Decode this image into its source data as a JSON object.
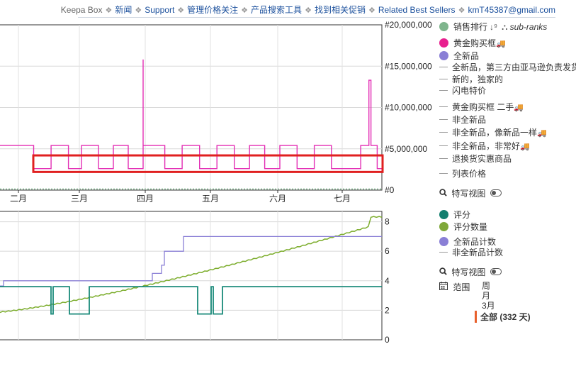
{
  "nav": {
    "items": [
      {
        "label": "Keepa Box",
        "style": "plain"
      },
      {
        "label": "新闻",
        "style": "link"
      },
      {
        "label": "Support",
        "style": "link"
      },
      {
        "label": "管理价格关注",
        "style": "link"
      },
      {
        "label": "产品搜索工具",
        "style": "link"
      },
      {
        "label": "找到相关促销",
        "style": "link"
      },
      {
        "label": "Related Best Sellers",
        "style": "link"
      },
      {
        "label": "kmT45387@gmail.com",
        "style": "link"
      }
    ],
    "separator": "❖"
  },
  "chart_data": [
    {
      "type": "line",
      "y_tick_labels": [
        "#20,000,000",
        "#15,000,000",
        "#10,000,000",
        "#5,000,000",
        "#0"
      ],
      "ylim": [
        0,
        20000000
      ],
      "x_tick_labels": [
        "二月",
        "三月",
        "四月",
        "五月",
        "六月",
        "七月"
      ],
      "series": [
        {
          "name": "黄金购买框",
          "color": "#e32fb5",
          "points": [
            [
              "start",
              5400000
            ],
            [
              "Feb 08",
              5400000
            ],
            [
              "Feb 08",
              2600000
            ],
            [
              "Feb 16",
              2600000
            ],
            [
              "Feb 16",
              5400000
            ],
            [
              "Feb 24",
              5400000
            ],
            [
              "Feb 24",
              2600000
            ],
            [
              "Mar 02",
              2600000
            ],
            [
              "Mar 02",
              5400000
            ],
            [
              "Mar 10",
              5400000
            ],
            [
              "Mar 10",
              2600000
            ],
            [
              "Mar 17",
              2600000
            ],
            [
              "Mar 17",
              5400000
            ],
            [
              "Mar 24",
              5400000
            ],
            [
              "Mar 24",
              2600000
            ],
            [
              "Mar 31",
              2600000
            ],
            [
              "Mar 31",
              15800000
            ],
            [
              "Mar 31",
              5400000
            ],
            [
              "Apr 10",
              5400000
            ],
            [
              "Apr 10",
              2600000
            ],
            [
              "Apr 18",
              2600000
            ],
            [
              "Apr 18",
              5400000
            ],
            [
              "Apr 26",
              5400000
            ],
            [
              "Apr 26",
              2600000
            ],
            [
              "May 04",
              2600000
            ],
            [
              "May 04",
              5400000
            ],
            [
              "May 12",
              5400000
            ],
            [
              "May 12",
              2600000
            ],
            [
              "May 19",
              2600000
            ],
            [
              "May 19",
              5400000
            ],
            [
              "May 26",
              5400000
            ],
            [
              "May 26",
              2600000
            ],
            [
              "Jun 02",
              2600000
            ],
            [
              "Jun 02",
              5400000
            ],
            [
              "Jun 10",
              5400000
            ],
            [
              "Jun 10",
              2600000
            ],
            [
              "Jun 18",
              2600000
            ],
            [
              "Jun 18",
              5400000
            ],
            [
              "Jun 26",
              5400000
            ],
            [
              "Jun 26",
              2600000
            ],
            [
              "Jul 10",
              2600000
            ],
            [
              "Jul 10",
              5400000
            ],
            [
              "Jul 14",
              5400000
            ],
            [
              "Jul 14",
              13300000
            ],
            [
              "Jul 15",
              13300000
            ],
            [
              "Jul 15",
              5400000
            ],
            [
              "Jul 18",
              5400000
            ],
            [
              "Jul 18",
              2600000
            ],
            [
              "end",
              2600000
            ]
          ]
        }
      ],
      "grid": true,
      "highlight_box": {
        "y_range": [
          2200000,
          4200000
        ],
        "color": "#e02020"
      }
    },
    {
      "type": "line",
      "y_tick_labels": [
        "8",
        "6",
        "4",
        "2",
        "0"
      ],
      "ylim": [
        0,
        8.7
      ],
      "series": [
        {
          "name": "评分",
          "color": "#1a8a7a",
          "values_note": "step 3.6 with dips to 1.8"
        },
        {
          "name": "评分数量",
          "color": "#7cad2c",
          "values_note": "rises ~1.9 to ~8.3"
        },
        {
          "name": "全新品计数",
          "color": "#8a7fd6",
          "values_note": "steps 3.6→4.0→5.0→6.0→7.0"
        }
      ],
      "grid": true
    }
  ],
  "legend_top": {
    "items": [
      {
        "kind": "dot",
        "color": "#7fb58d",
        "label": "销售排行",
        "extra_icon": "sort-icon",
        "extra_label": "sub-ranks"
      },
      {
        "kind": "dot",
        "color": "#e8208f",
        "label": "黄金购买框",
        "truck": true
      },
      {
        "kind": "dot",
        "color": "#8a7fd6",
        "label": "全新品"
      },
      {
        "kind": "dash",
        "label": "全新品，第三方由亚马逊负责发货"
      },
      {
        "kind": "dash",
        "label": "新的，独家的"
      },
      {
        "kind": "dash",
        "label": "闪电特价"
      },
      {
        "kind": "dash",
        "label": "黄金购买框 二手",
        "truck": true
      },
      {
        "kind": "dash",
        "label": "非全新品"
      },
      {
        "kind": "dash",
        "label": "非全新品，像新品一样",
        "truck": true
      },
      {
        "kind": "dash",
        "label": "非全新品，非常好",
        "truck": true
      },
      {
        "kind": "dash",
        "label": "退换货实惠商品"
      },
      {
        "kind": "dash",
        "label": "列表价格"
      }
    ],
    "zoom_label": "特写视图"
  },
  "legend_bottom": {
    "items": [
      {
        "kind": "dot",
        "color": "#137f6f",
        "label": "评分"
      },
      {
        "kind": "dot",
        "color": "#7fa83a",
        "label": "评分数量"
      },
      {
        "kind": "dot",
        "color": "#8a7fd6",
        "label": "全新品计数"
      },
      {
        "kind": "dash",
        "label": "非全新品计数"
      }
    ],
    "zoom_label": "特写视图",
    "range_label": "范围",
    "range_options": [
      "周",
      "月",
      "3月"
    ],
    "range_selected": "全部 (332 天)"
  }
}
